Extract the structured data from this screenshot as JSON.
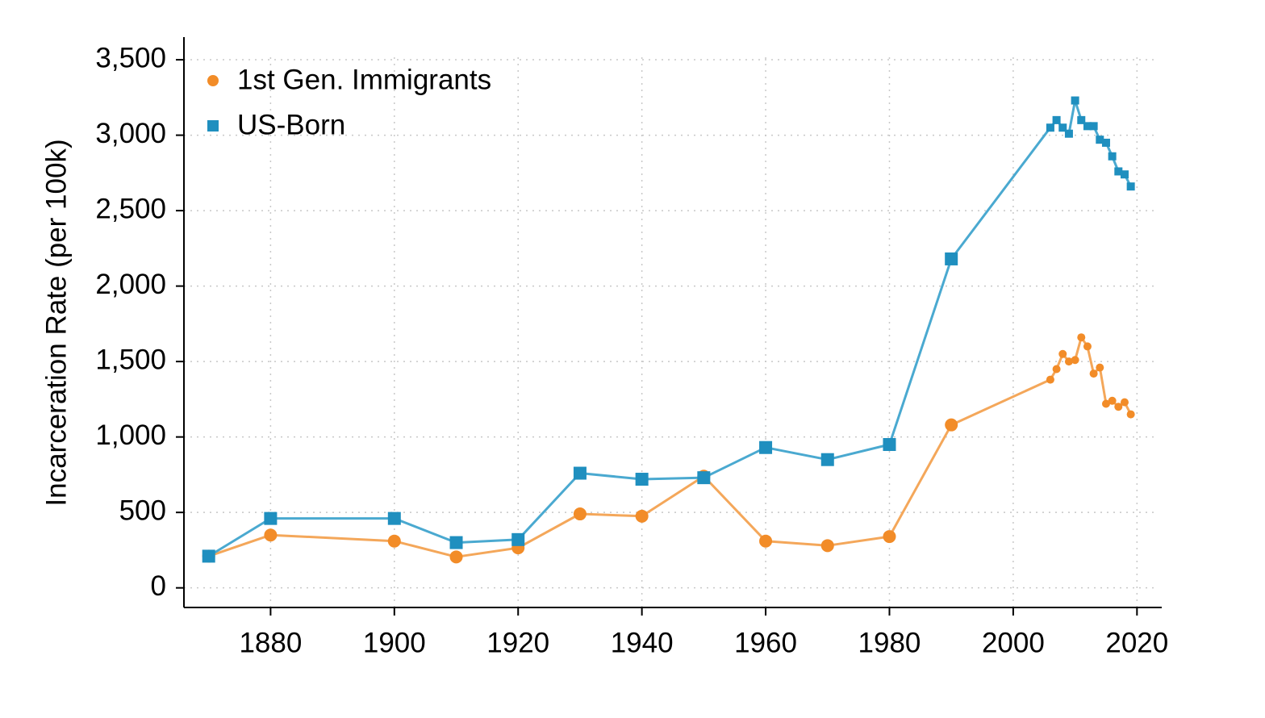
{
  "chart_data": {
    "type": "line",
    "title": "",
    "xlabel": "",
    "ylabel": "Incarceration Rate (per 100k)",
    "xlim": [
      1866,
      2024
    ],
    "ylim": [
      -130,
      3650
    ],
    "xticks": [
      1880,
      1900,
      1920,
      1940,
      1960,
      1980,
      2000,
      2020
    ],
    "yticks": [
      0,
      500,
      1000,
      1500,
      2000,
      2500,
      3000,
      3500
    ],
    "xtick_labels": [
      "1880",
      "1900",
      "1920",
      "1940",
      "1960",
      "1980",
      "2000",
      "2020"
    ],
    "ytick_labels": [
      "0",
      "500",
      "1,000",
      "1,500",
      "2,000",
      "2,500",
      "3,000",
      "3,500"
    ],
    "grid": true,
    "legend_position": "top-left",
    "series": [
      {
        "name": "1st Gen. Immigrants",
        "color": "#f28c28",
        "line_color": "#f4a75a",
        "marker": "circle",
        "x": [
          1870,
          1880,
          1900,
          1910,
          1920,
          1930,
          1940,
          1950,
          1960,
          1970,
          1980,
          1990,
          2006,
          2007,
          2008,
          2009,
          2010,
          2011,
          2012,
          2013,
          2014,
          2015,
          2016,
          2017,
          2018,
          2019
        ],
        "y": [
          210,
          350,
          310,
          205,
          265,
          490,
          475,
          740,
          310,
          280,
          340,
          1080,
          1380,
          1450,
          1550,
          1500,
          1510,
          1660,
          1600,
          1420,
          1460,
          1220,
          1240,
          1200,
          1230,
          1150
        ]
      },
      {
        "name": "US-Born",
        "color": "#1f8fbf",
        "line_color": "#4aa9d0",
        "marker": "square",
        "x": [
          1870,
          1880,
          1900,
          1910,
          1920,
          1930,
          1940,
          1950,
          1960,
          1970,
          1980,
          1990,
          2006,
          2007,
          2008,
          2009,
          2010,
          2011,
          2012,
          2013,
          2014,
          2015,
          2016,
          2017,
          2018,
          2019
        ],
        "y": [
          210,
          460,
          460,
          300,
          320,
          760,
          720,
          730,
          930,
          850,
          950,
          2180,
          3050,
          3100,
          3050,
          3010,
          3230,
          3100,
          3060,
          3060,
          2970,
          2950,
          2860,
          2760,
          2740,
          2660
        ]
      }
    ]
  }
}
